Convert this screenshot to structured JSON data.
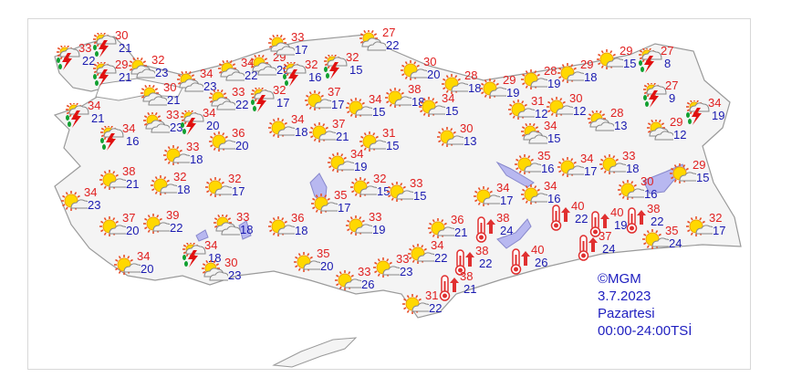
{
  "map": {
    "colors": {
      "land": "#f4f4f4",
      "border": "#9a9a9a",
      "lake": "#b8b8f0",
      "max_temp": "#e02020",
      "min_temp": "#1a1ab0"
    },
    "legend_icons": {
      "sunny": "sun-icon",
      "partly": "sun-cloud-icon",
      "storm": "thunderstorm-icon",
      "hot": "thermometer-hot-icon"
    },
    "stations": [
      {
        "icon": "storm",
        "max": "33",
        "min": "22"
      },
      {
        "icon": "storm",
        "max": "30",
        "min": "21"
      },
      {
        "icon": "storm",
        "max": "29",
        "min": "21"
      },
      {
        "icon": "partly",
        "max": "32",
        "min": "23"
      },
      {
        "icon": "partly",
        "max": "34",
        "min": "23"
      },
      {
        "icon": "partly",
        "max": "30",
        "min": "21"
      },
      {
        "icon": "partly",
        "max": "33",
        "min": "22"
      },
      {
        "icon": "partly",
        "max": "34",
        "min": "22"
      },
      {
        "icon": "partly",
        "max": "29",
        "min": "20"
      },
      {
        "icon": "storm",
        "max": "32",
        "min": "16"
      },
      {
        "icon": "partly",
        "max": "33",
        "min": "17"
      },
      {
        "icon": "storm",
        "max": "32",
        "min": "15"
      },
      {
        "icon": "partly",
        "max": "27",
        "min": "22"
      },
      {
        "icon": "storm",
        "max": "32",
        "min": "17"
      },
      {
        "icon": "storm",
        "max": "34",
        "min": "21"
      },
      {
        "icon": "partly",
        "max": "33",
        "min": "23"
      },
      {
        "icon": "storm",
        "max": "34",
        "min": "20"
      },
      {
        "icon": "storm",
        "max": "34",
        "min": "16"
      },
      {
        "icon": "sunny",
        "max": "37",
        "min": "17"
      },
      {
        "icon": "sunny",
        "max": "34",
        "min": "15"
      },
      {
        "icon": "sunny",
        "max": "34",
        "min": "18"
      },
      {
        "icon": "sunny",
        "max": "37",
        "min": "21"
      },
      {
        "icon": "sunny",
        "max": "31",
        "min": "15"
      },
      {
        "icon": "sunny",
        "max": "36",
        "min": "20"
      },
      {
        "icon": "sunny",
        "max": "33",
        "min": "18"
      },
      {
        "icon": "sunny",
        "max": "34",
        "min": "19"
      },
      {
        "icon": "sunny",
        "max": "30",
        "min": "20"
      },
      {
        "icon": "sunny",
        "max": "38",
        "min": "18"
      },
      {
        "icon": "sunny",
        "max": "34",
        "min": "15"
      },
      {
        "icon": "sunny",
        "max": "28",
        "min": "18"
      },
      {
        "icon": "sunny",
        "max": "29",
        "min": "19"
      },
      {
        "icon": "sunny",
        "max": "28",
        "min": "19"
      },
      {
        "icon": "sunny",
        "max": "29",
        "min": "18"
      },
      {
        "icon": "sunny",
        "max": "29",
        "min": "15"
      },
      {
        "icon": "storm",
        "max": "27",
        "min": "8"
      },
      {
        "icon": "sunny",
        "max": "31",
        "min": "12"
      },
      {
        "icon": "sunny",
        "max": "30",
        "min": "12"
      },
      {
        "icon": "partly",
        "max": "28",
        "min": "13"
      },
      {
        "icon": "storm",
        "max": "27",
        "min": "9"
      },
      {
        "icon": "storm",
        "max": "34",
        "min": "19"
      },
      {
        "icon": "partly",
        "max": "29",
        "min": "12"
      },
      {
        "icon": "partly",
        "max": "34",
        "min": "15"
      },
      {
        "icon": "sunny",
        "max": "30",
        "min": "13"
      },
      {
        "icon": "sunny",
        "max": "38",
        "min": "21"
      },
      {
        "icon": "sunny",
        "max": "32",
        "min": "18"
      },
      {
        "icon": "sunny",
        "max": "32",
        "min": "17"
      },
      {
        "icon": "sunny",
        "max": "34",
        "min": "23"
      },
      {
        "icon": "sunny",
        "max": "37",
        "min": "20"
      },
      {
        "icon": "sunny",
        "max": "39",
        "min": "22"
      },
      {
        "icon": "partly",
        "max": "33",
        "min": "18"
      },
      {
        "icon": "sunny",
        "max": "36",
        "min": "18"
      },
      {
        "icon": "storm",
        "max": "34",
        "min": "18"
      },
      {
        "icon": "sunny",
        "max": "34",
        "min": "20"
      },
      {
        "icon": "partly",
        "max": "30",
        "min": "23"
      },
      {
        "icon": "sunny",
        "max": "35",
        "min": "20"
      },
      {
        "icon": "sunny",
        "max": "33",
        "min": "26"
      },
      {
        "icon": "sunny",
        "max": "35",
        "min": "17"
      },
      {
        "icon": "sunny",
        "max": "33",
        "min": "19"
      },
      {
        "icon": "sunny",
        "max": "32",
        "min": "15"
      },
      {
        "icon": "sunny",
        "max": "33",
        "min": "23"
      },
      {
        "icon": "sunny",
        "max": "33",
        "min": "15"
      },
      {
        "icon": "sunny",
        "max": "35",
        "min": "16"
      },
      {
        "icon": "sunny",
        "max": "34",
        "min": "17"
      },
      {
        "icon": "sunny",
        "max": "33",
        "min": "18"
      },
      {
        "icon": "sunny",
        "max": "29",
        "min": "15"
      },
      {
        "icon": "sunny",
        "max": "34",
        "min": "17"
      },
      {
        "icon": "sunny",
        "max": "34",
        "min": "16"
      },
      {
        "icon": "sunny",
        "max": "30",
        "min": "16"
      },
      {
        "icon": "hot",
        "max": "40",
        "min": "22"
      },
      {
        "icon": "hot",
        "max": "40",
        "min": "19"
      },
      {
        "icon": "hot",
        "max": "38",
        "min": "22"
      },
      {
        "icon": "sunny",
        "max": "36",
        "min": "21"
      },
      {
        "icon": "hot",
        "max": "38",
        "min": "24"
      },
      {
        "icon": "sunny",
        "max": "35",
        "min": "24"
      },
      {
        "icon": "sunny",
        "max": "32",
        "min": "17"
      },
      {
        "icon": "hot",
        "max": "37",
        "min": "24"
      },
      {
        "icon": "sunny",
        "max": "34",
        "min": "22"
      },
      {
        "icon": "hot",
        "max": "38",
        "min": "22"
      },
      {
        "icon": "hot",
        "max": "40",
        "min": "26"
      },
      {
        "icon": "hot",
        "max": "38",
        "min": "21"
      },
      {
        "icon": "sunny",
        "max": "31",
        "min": "22"
      }
    ]
  },
  "info": {
    "copyright": "©MGM",
    "date": "3.7.2023",
    "day": "Pazartesi",
    "period": "00:00-24:00TSİ"
  }
}
